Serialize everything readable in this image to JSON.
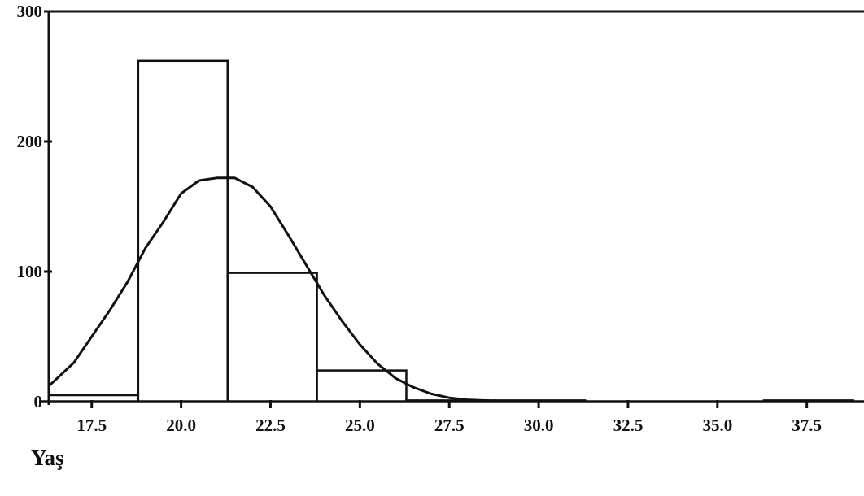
{
  "chart_data": {
    "type": "histogram",
    "xlabel": "Yaş",
    "ylabel": "",
    "xlim": [
      16.3,
      39.1
    ],
    "ylim": [
      0,
      300
    ],
    "x_ticks": [
      "17.5",
      "20.0",
      "22.5",
      "25.0",
      "27.5",
      "30.0",
      "32.5",
      "35.0",
      "37.5"
    ],
    "y_ticks": [
      "0",
      "100",
      "200",
      "300"
    ],
    "bins": [
      {
        "start": 16.3,
        "end": 18.8,
        "count": 5
      },
      {
        "start": 18.8,
        "end": 21.3,
        "count": 262
      },
      {
        "start": 21.3,
        "end": 23.8,
        "count": 99
      },
      {
        "start": 23.8,
        "end": 26.3,
        "count": 24
      },
      {
        "start": 26.3,
        "end": 28.8,
        "count": 1
      },
      {
        "start": 28.8,
        "end": 31.3,
        "count": 1
      },
      {
        "start": 36.3,
        "end": 38.8,
        "count": 1
      }
    ],
    "normal_curve": {
      "x": [
        16.3,
        17.0,
        17.5,
        18.0,
        18.5,
        19.0,
        19.5,
        20.0,
        20.5,
        21.0,
        21.5,
        22.0,
        22.5,
        23.0,
        23.5,
        24.0,
        24.5,
        25.0,
        25.5,
        26.0,
        26.5,
        27.0,
        27.5,
        28.0,
        29.0,
        30.0,
        31.0
      ],
      "y": [
        12,
        30,
        50,
        70,
        92,
        118,
        138,
        160,
        170,
        172,
        172,
        165,
        150,
        128,
        105,
        82,
        62,
        44,
        29,
        18,
        11,
        6,
        3,
        1.5,
        0.4,
        0.1,
        0
      ]
    },
    "grid": false,
    "legend": "none"
  }
}
